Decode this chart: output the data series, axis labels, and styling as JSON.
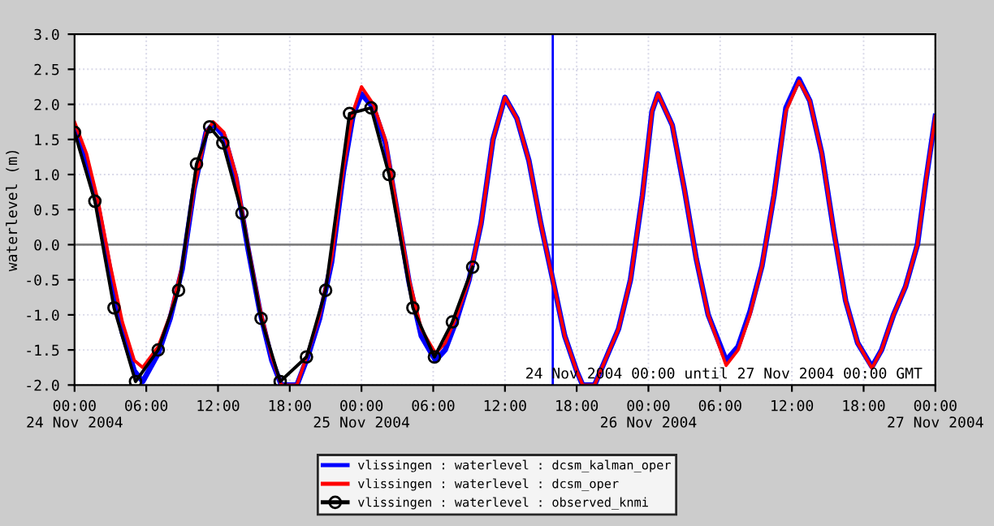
{
  "chart_data": {
    "type": "line",
    "ylabel": "waterlevel (m)",
    "xlim": [
      "2004-11-24T00:00",
      "2004-11-27T00:00"
    ],
    "ylim": [
      -2.0,
      3.0
    ],
    "xticks": [
      {
        "value": "2004-11-24T00:00",
        "label": "00:00\n24 Nov 2004"
      },
      {
        "value": "2004-11-24T06:00",
        "label": "06:00"
      },
      {
        "value": "2004-11-24T12:00",
        "label": "12:00"
      },
      {
        "value": "2004-11-24T18:00",
        "label": "18:00"
      },
      {
        "value": "2004-11-25T00:00",
        "label": "00:00\n25 Nov 2004"
      },
      {
        "value": "2004-11-25T06:00",
        "label": "06:00"
      },
      {
        "value": "2004-11-25T12:00",
        "label": "12:00"
      },
      {
        "value": "2004-11-25T18:00",
        "label": "18:00"
      },
      {
        "value": "2004-11-26T00:00",
        "label": "00:00\n26 Nov 2004"
      },
      {
        "value": "2004-11-26T06:00",
        "label": "06:00"
      },
      {
        "value": "2004-11-26T12:00",
        "label": "12:00"
      },
      {
        "value": "2004-11-26T18:00",
        "label": "18:00"
      },
      {
        "value": "2004-11-27T00:00",
        "label": "00:00\n27 Nov 2004"
      }
    ],
    "yticks": [
      {
        "value": -2.0,
        "label": "-2.0"
      },
      {
        "value": -1.5,
        "label": "-1.5"
      },
      {
        "value": -1.0,
        "label": "-1.0"
      },
      {
        "value": -0.5,
        "label": "-0.5"
      },
      {
        "value": 0.0,
        "label": "0.0"
      },
      {
        "value": 0.5,
        "label": "0.5"
      },
      {
        "value": 1.0,
        "label": "1.0"
      },
      {
        "value": 1.5,
        "label": "1.5"
      },
      {
        "value": 2.0,
        "label": "2.0"
      },
      {
        "value": 2.5,
        "label": "2.5"
      },
      {
        "value": 3.0,
        "label": "3.0"
      }
    ],
    "grid": true,
    "legend": "bottom",
    "x": [
      "2004-11-24T00:00",
      "2004-11-24T01:00",
      "2004-11-24T02:00",
      "2004-11-24T03:00",
      "2004-11-24T04:00",
      "2004-11-24T05:00",
      "2004-11-24T05:42",
      "2004-11-24T07:00",
      "2004-11-24T08:00",
      "2004-11-24T09:00",
      "2004-11-24T10:00",
      "2004-11-24T11:00",
      "2004-11-24T11:36",
      "2004-11-24T12:30",
      "2004-11-24T13:30",
      "2004-11-24T14:30",
      "2004-11-24T15:30",
      "2004-11-24T16:30",
      "2004-11-24T17:18",
      "2004-11-24T18:00",
      "2004-11-24T18:36",
      "2004-11-24T19:30",
      "2004-11-24T20:30",
      "2004-11-24T21:30",
      "2004-11-24T22:30",
      "2004-11-24T23:18",
      "2004-11-25T00:00",
      "2004-11-25T01:00",
      "2004-11-25T02:00",
      "2004-11-25T03:00",
      "2004-11-25T04:00",
      "2004-11-25T05:00",
      "2004-11-25T06:12",
      "2004-11-25T07:00",
      "2004-11-25T08:00",
      "2004-11-25T09:00",
      "2004-11-25T10:00",
      "2004-11-25T11:00",
      "2004-11-25T12:00",
      "2004-11-25T13:00",
      "2004-11-25T14:00",
      "2004-11-25T15:00",
      "2004-11-25T16:00",
      "2004-11-25T17:00",
      "2004-11-25T18:00",
      "2004-11-25T18:30",
      "2004-11-25T19:30",
      "2004-11-25T20:30",
      "2004-11-25T21:30",
      "2004-11-25T22:30",
      "2004-11-25T23:30",
      "2004-11-26T00:18",
      "2004-11-26T00:48",
      "2004-11-26T02:00",
      "2004-11-26T03:00",
      "2004-11-26T04:00",
      "2004-11-26T05:00",
      "2004-11-26T06:30",
      "2004-11-26T07:30",
      "2004-11-26T08:30",
      "2004-11-26T09:30",
      "2004-11-26T10:30",
      "2004-11-26T11:30",
      "2004-11-26T12:36",
      "2004-11-26T13:30",
      "2004-11-26T14:30",
      "2004-11-26T15:30",
      "2004-11-26T16:30",
      "2004-11-26T17:30",
      "2004-11-26T18:42",
      "2004-11-26T19:30",
      "2004-11-26T20:30",
      "2004-11-26T21:30",
      "2004-11-26T22:30",
      "2004-11-26T23:12",
      "2004-11-27T00:00"
    ],
    "series": [
      {
        "name": "vlissingen : waterlevel : dcsm_kalman_oper",
        "color": "#0000ff",
        "marker": "none",
        "values": [
          1.65,
          1.2,
          0.5,
          -0.4,
          -1.25,
          -1.8,
          -1.95,
          -1.55,
          -1.05,
          -0.35,
          0.8,
          1.6,
          1.72,
          1.55,
          0.95,
          -0.05,
          -0.95,
          -1.65,
          -2.0,
          -2.0,
          -2.0,
          -1.6,
          -1.05,
          -0.25,
          1.05,
          1.85,
          2.15,
          1.95,
          1.45,
          0.45,
          -0.55,
          -1.3,
          -1.65,
          -1.5,
          -1.05,
          -0.5,
          0.3,
          1.5,
          2.1,
          1.8,
          1.2,
          0.3,
          -0.5,
          -1.3,
          -1.8,
          -2.0,
          -2.0,
          -1.6,
          -1.2,
          -0.5,
          0.7,
          1.9,
          2.15,
          1.7,
          0.8,
          -0.2,
          -1.0,
          -1.65,
          -1.45,
          -0.95,
          -0.3,
          0.7,
          1.95,
          2.36,
          2.05,
          1.3,
          0.2,
          -0.8,
          -1.4,
          -1.74,
          -1.5,
          -1.0,
          -0.6,
          0.0,
          0.9,
          1.83
        ]
      },
      {
        "name": "vlissingen : waterlevel : dcsm_oper",
        "color": "#ff0000",
        "marker": "none",
        "values": [
          1.75,
          1.3,
          0.6,
          -0.3,
          -1.1,
          -1.65,
          -1.75,
          -1.45,
          -1.0,
          -0.3,
          0.8,
          1.6,
          1.75,
          1.6,
          1.0,
          0.0,
          -0.9,
          -1.6,
          -2.0,
          -2.0,
          -2.0,
          -1.55,
          -1.0,
          -0.2,
          1.1,
          1.9,
          2.25,
          2.0,
          1.5,
          0.5,
          -0.5,
          -1.2,
          -1.55,
          -1.4,
          -1.0,
          -0.5,
          0.3,
          1.5,
          2.1,
          1.8,
          1.2,
          0.3,
          -0.5,
          -1.3,
          -1.8,
          -2.0,
          -2.0,
          -1.6,
          -1.2,
          -0.5,
          0.7,
          1.9,
          2.15,
          1.7,
          0.8,
          -0.2,
          -1.0,
          -1.72,
          -1.5,
          -1.0,
          -0.3,
          0.7,
          1.9,
          2.33,
          2.05,
          1.3,
          0.2,
          -0.8,
          -1.4,
          -1.76,
          -1.5,
          -1.0,
          -0.6,
          0.0,
          0.9,
          1.83
        ]
      },
      {
        "name": "vlissingen : waterlevel : observed_knmi",
        "color": "#000000",
        "marker": "circle",
        "x": [
          "2004-11-24T00:00",
          "2004-11-24T01:42",
          "2004-11-24T03:18",
          "2004-11-24T05:06",
          "2004-11-24T07:00",
          "2004-11-24T08:42",
          "2004-11-24T10:12",
          "2004-11-24T11:18",
          "2004-11-24T12:24",
          "2004-11-24T14:00",
          "2004-11-24T15:36",
          "2004-11-24T17:12",
          "2004-11-24T19:24",
          "2004-11-24T21:00",
          "2004-11-24T23:00",
          "2004-11-25T00:48",
          "2004-11-25T02:18",
          "2004-11-25T04:18",
          "2004-11-25T06:06",
          "2004-11-25T07:36",
          "2004-11-25T09:18"
        ],
        "values": [
          1.6,
          0.62,
          -0.9,
          -1.95,
          -1.5,
          -0.65,
          1.15,
          1.68,
          1.45,
          0.45,
          -1.05,
          -1.95,
          -1.6,
          -0.65,
          1.87,
          1.95,
          1.0,
          -0.9,
          -1.6,
          -1.1,
          -0.32
        ]
      }
    ],
    "ref_lines": [
      {
        "axis": "y",
        "value": 0,
        "color": "#808080"
      },
      {
        "axis": "x",
        "value": "2004-11-25T16:00",
        "color": "#0000ff"
      }
    ],
    "annotations": [
      "24 Nov 2004 00:00 until 27 Nov 2004 00:00 GMT"
    ]
  }
}
